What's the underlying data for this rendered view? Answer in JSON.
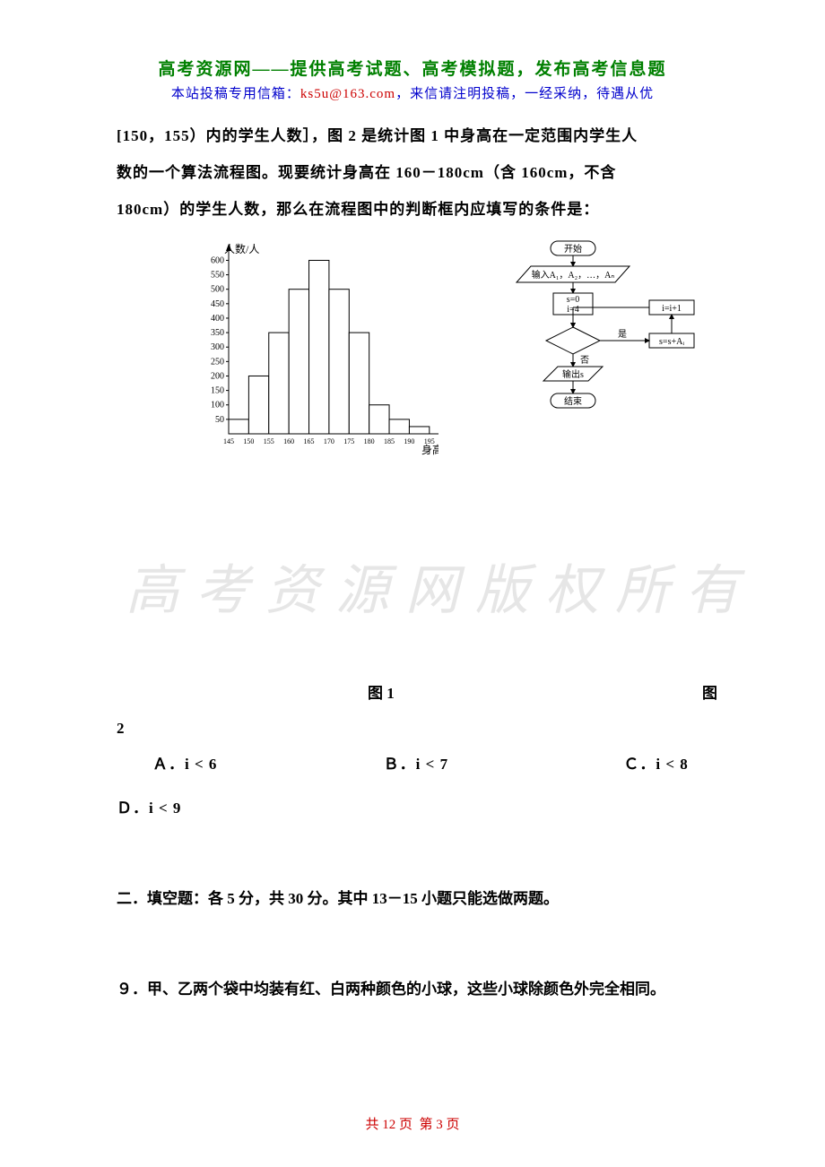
{
  "header": {
    "title": "高考资源网——提供高考试题、高考模拟题，发布高考信息题",
    "sub_prefix": "本站投稿专用信箱：",
    "email": "ks5u@163.com",
    "sub_suffix": "，来信请注明投稿，一经采纳，待遇从优"
  },
  "body_lines": [
    "[150，155）内的学生人数］，图 2 是统计图 1 中身高在一定范围内学生人",
    "数的一个算法流程图。现要统计身高在 160－180cm（含 160cm，不含",
    "180cm）的学生人数，那么在流程图中的判断框内应填写的条件是："
  ],
  "histogram": {
    "type": "bar",
    "y_axis_label": "人数/人",
    "x_axis_label": "身高/cm",
    "x_ticks": [
      "145",
      "150",
      "155",
      "160",
      "165",
      "170",
      "175",
      "180",
      "185",
      "190",
      "195"
    ],
    "y_ticks": [
      50,
      100,
      150,
      200,
      250,
      300,
      350,
      400,
      450,
      500,
      550,
      600
    ],
    "ylim": [
      0,
      620
    ],
    "values": [
      50,
      200,
      350,
      500,
      600,
      500,
      350,
      100,
      50,
      25
    ],
    "bar_fill": "#ffffff",
    "bar_stroke": "#000000",
    "axis_color": "#000000",
    "font_size": 10
  },
  "flowchart": {
    "type": "flowchart",
    "stroke": "#000000",
    "fill": "#ffffff",
    "font_size": 10,
    "nodes": {
      "start": {
        "shape": "rounded",
        "label": "开始"
      },
      "input": {
        "shape": "parallelogram",
        "label": "输入A₁，A₂，…，Aₙ"
      },
      "init": {
        "shape": "rect",
        "label_line1": "s=0",
        "label_line2": "i=4"
      },
      "decision": {
        "shape": "diamond",
        "label": ""
      },
      "yes_label": "是",
      "no_label": "否",
      "inc": {
        "shape": "rect",
        "label": "i=i+1"
      },
      "add": {
        "shape": "rect",
        "label": "s=s+Aᵢ"
      },
      "output": {
        "shape": "parallelogram",
        "label": "输出s"
      },
      "end": {
        "shape": "rounded",
        "label": "结束"
      }
    }
  },
  "figure_labels": {
    "fig1": "图 1",
    "fig2": "图",
    "fig2_cont": "2"
  },
  "options": {
    "a": "Ａ．i < 6",
    "b": "Ｂ．i < 7",
    "c": "Ｃ．i < 8",
    "d": "Ｄ．i < 9"
  },
  "section2": "二．填空题：各 5 分，共 30 分。其中 13－15 小题只能选做两题。",
  "q9": "９．甲、乙两个袋中均装有红、白两种颜色的小球，这些小球除颜色外完全相同。",
  "watermark": "高考资源网版权所有",
  "footer": {
    "total": "共 12 页",
    "current": "第 3 页"
  }
}
